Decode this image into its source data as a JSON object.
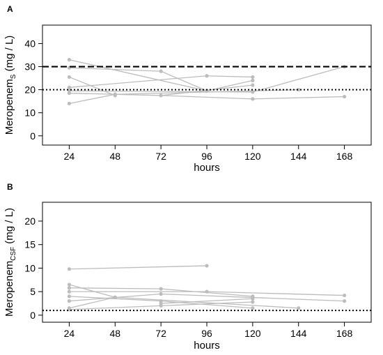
{
  "chart_data": [
    {
      "panel_label": "A",
      "type": "line",
      "xlabel": "hours",
      "ylabel_main": "Meropenem",
      "ylabel_sub": "S",
      "ylabel_unit": " (mg / L)",
      "xlim": [
        10,
        182
      ],
      "ylim": [
        -4,
        48
      ],
      "x_ticks": [
        24,
        48,
        72,
        96,
        120,
        144,
        168
      ],
      "y_ticks": [
        0,
        10,
        20,
        30,
        40
      ],
      "reference_lines": [
        {
          "y": 30,
          "style": "dashed"
        },
        {
          "y": 20,
          "style": "dotted"
        }
      ],
      "series_color": "#bcbcbc",
      "series": [
        {
          "x": [
            24,
            96
          ],
          "y": [
            33.0,
            19.5
          ]
        },
        {
          "x": [
            24,
            72,
            96,
            120
          ],
          "y": [
            29.5,
            28.0,
            19.5,
            24.0
          ]
        },
        {
          "x": [
            24,
            48
          ],
          "y": [
            25.5,
            17.5
          ]
        },
        {
          "x": [
            24,
            96,
            120
          ],
          "y": [
            21.0,
            26.0,
            25.5
          ]
        },
        {
          "x": [
            24,
            120,
            168
          ],
          "y": [
            19.5,
            19.0,
            30.0
          ]
        },
        {
          "x": [
            24,
            72,
            120,
            168
          ],
          "y": [
            18.5,
            17.5,
            16.0,
            17.0
          ]
        },
        {
          "x": [
            24,
            48,
            144
          ],
          "y": [
            14.0,
            18.0,
            20.0
          ]
        },
        {
          "x": [
            48,
            72,
            120
          ],
          "y": [
            18.0,
            17.5,
            22.0
          ]
        }
      ]
    },
    {
      "panel_label": "B",
      "type": "line",
      "xlabel": "hours",
      "ylabel_main": "Meropenem",
      "ylabel_sub": "CSF",
      "ylabel_unit": " (mg / L)",
      "xlim": [
        10,
        182
      ],
      "ylim": [
        -1.5,
        24
      ],
      "x_ticks": [
        24,
        48,
        72,
        96,
        120,
        144,
        168
      ],
      "y_ticks": [
        0,
        5,
        10,
        15,
        20
      ],
      "reference_lines": [
        {
          "y": 1,
          "style": "dotted"
        }
      ],
      "series_color": "#bcbcbc",
      "series": [
        {
          "x": [
            24,
            96
          ],
          "y": [
            9.8,
            10.5
          ]
        },
        {
          "x": [
            24,
            48
          ],
          "y": [
            6.5,
            3.8
          ]
        },
        {
          "x": [
            24,
            72,
            120
          ],
          "y": [
            5.8,
            5.6,
            4.0
          ]
        },
        {
          "x": [
            24,
            96,
            168
          ],
          "y": [
            5.0,
            5.0,
            4.2
          ]
        },
        {
          "x": [
            24,
            72,
            120
          ],
          "y": [
            4.0,
            3.0,
            1.5
          ]
        },
        {
          "x": [
            24,
            72,
            168
          ],
          "y": [
            3.0,
            4.5,
            3.0
          ]
        },
        {
          "x": [
            24,
            48,
            144
          ],
          "y": [
            1.5,
            3.8,
            1.5
          ]
        },
        {
          "x": [
            24,
            72,
            120
          ],
          "y": [
            1.2,
            2.0,
            2.8
          ]
        },
        {
          "x": [
            72,
            120
          ],
          "y": [
            2.5,
            3.5
          ]
        }
      ]
    }
  ]
}
